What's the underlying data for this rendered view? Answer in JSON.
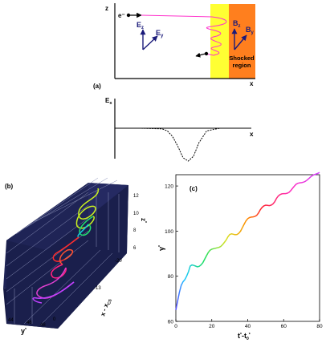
{
  "panel_a": {
    "label": "(a)",
    "electron_label": "e⁻",
    "field_labels": {
      "ez": "E",
      "ez_sub": "z",
      "ey": "E",
      "ey_sub": "y",
      "bz": "B",
      "bz_sub": "z",
      "by": "B",
      "by_sub": "y"
    },
    "axis_z": "z",
    "axis_x": "x",
    "shocked_line1": "Shocked",
    "shocked_line2": "region",
    "colors": {
      "shock_yellow": "#ffff33",
      "shock_orange": "#ff7f1e",
      "trajectory": "#ff33cc",
      "arrow_blue": "#1a1a7a"
    }
  },
  "panel_ex": {
    "y_label": "E",
    "y_sub": "x",
    "x_label": "x"
  },
  "panel_b": {
    "label": "(b)",
    "z_ticks": [
      "12",
      "10",
      "8",
      "6"
    ],
    "z_axis": "z",
    "xcs_ticks": [
      "-20",
      "-13"
    ],
    "xcs_axis": "x - x",
    "xcs_sub": "CS",
    "y_ticks": [
      "44",
      "46",
      "48",
      "0"
    ],
    "y_axis": "y",
    "colors": {
      "box": "#1c2050",
      "grid": "#8a90b8"
    }
  },
  "chart_data": [
    {
      "type": "line",
      "title": "",
      "xlabel": "",
      "ylabel": "Eₓ",
      "series": [
        {
          "name": "",
          "x": [
            0,
            50,
            90,
            100,
            110,
            120,
            130,
            140,
            150,
            160,
            175,
            200,
            260
          ],
          "values": [
            0,
            0,
            -0.02,
            -0.08,
            -0.25,
            -0.55,
            -0.9,
            -1.0,
            -0.85,
            -0.45,
            -0.08,
            0,
            0
          ]
        }
      ]
    },
    {
      "type": "line",
      "title": "",
      "xlabel": "t* - t0*",
      "ylabel": "γ*",
      "xlim": [
        0,
        80
      ],
      "ylim": [
        60,
        125
      ],
      "xticks": [
        0,
        20,
        40,
        60,
        80
      ],
      "yticks": [
        60,
        80,
        100,
        120
      ],
      "panel_label": "(c)",
      "series": [
        {
          "name": "",
          "x": [
            0,
            1,
            2,
            3,
            4,
            5,
            6,
            7,
            8,
            9,
            10,
            11,
            12,
            13,
            14,
            15,
            16,
            17,
            18,
            19,
            20,
            21,
            22,
            23,
            24,
            25,
            26,
            27,
            28,
            29,
            30,
            31,
            32,
            33,
            34,
            35,
            36,
            37,
            38,
            39,
            40,
            41,
            42,
            43,
            44,
            45,
            46,
            47,
            48,
            49,
            50,
            51,
            52,
            53,
            54,
            55,
            56,
            57,
            58,
            59,
            60,
            61,
            62,
            63,
            64,
            65,
            66,
            67,
            68,
            69,
            70,
            71,
            72,
            73,
            74,
            75,
            76,
            77,
            78,
            79,
            80
          ],
          "values": [
            65,
            69,
            73,
            76,
            77.5,
            78.5,
            80,
            82,
            84.5,
            85,
            84.8,
            84.5,
            84.2,
            84.4,
            85,
            86,
            87.5,
            89,
            90.5,
            91.5,
            92,
            92.2,
            92.4,
            92.6,
            92.8,
            93.2,
            94,
            95,
            96,
            97.5,
            98.5,
            98.8,
            98.6,
            98.4,
            98.5,
            99,
            100,
            101.5,
            103,
            104.5,
            105.5,
            106,
            106.2,
            106.3,
            106.5,
            107,
            108,
            109.5,
            110.5,
            111.2,
            111.5,
            111.4,
            111.3,
            111.5,
            112,
            113,
            114.5,
            115.5,
            116.2,
            116.5,
            116.6,
            116.6,
            116.8,
            117.2,
            118,
            119,
            120,
            120.8,
            121.2,
            121.4,
            121.5,
            121.7,
            122,
            122.6,
            123.3,
            124,
            124.6,
            125,
            125.3,
            125.6,
            126
          ]
        }
      ]
    }
  ]
}
